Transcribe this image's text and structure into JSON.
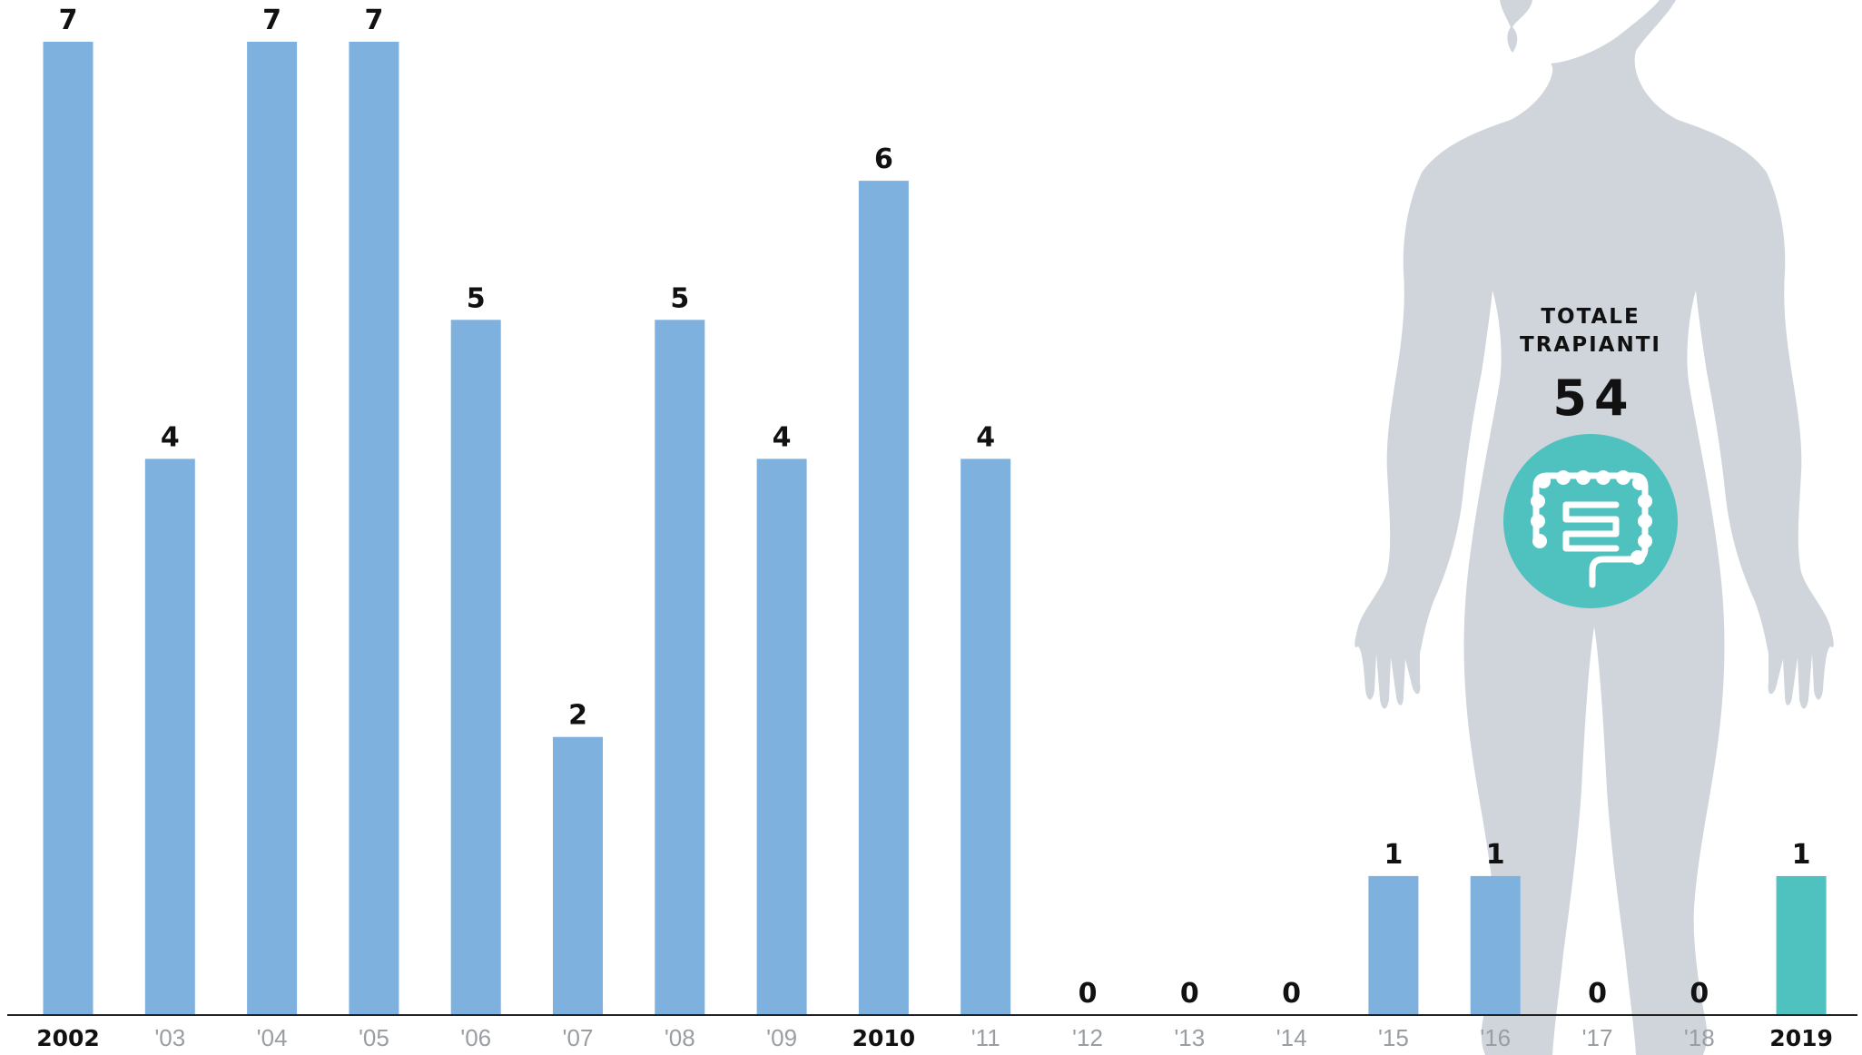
{
  "chart_data": {
    "type": "bar",
    "categories": [
      "2002",
      "'03",
      "'04",
      "'05",
      "'06",
      "'07",
      "'08",
      "'09",
      "2010",
      "'11",
      "'12",
      "'13",
      "'14",
      "'15",
      "'16",
      "'17",
      "'18",
      "2019"
    ],
    "values": [
      7,
      4,
      7,
      7,
      5,
      2,
      5,
      4,
      6,
      4,
      0,
      0,
      0,
      1,
      1,
      0,
      0,
      1
    ],
    "strong_categories": [
      "2002",
      "2010",
      "2019"
    ],
    "highlight_category": "2019",
    "ylim": [
      0,
      7
    ],
    "grid": false,
    "legend": "none",
    "title": "",
    "xlabel": "",
    "ylabel": ""
  },
  "total": {
    "label_line1": "TOTALE",
    "label_line2": "TRAPIANTI",
    "value": "54"
  },
  "icons": {
    "figure": "human-body-silhouette-icon",
    "organ": "intestine-icon"
  },
  "colors": {
    "bar": "#7fb1df",
    "highlight": "#4fc1be",
    "silhouette": "#d0d5dc",
    "axis": "#222222",
    "tick_text": "#9a9ea3",
    "value_text": "#111111"
  }
}
